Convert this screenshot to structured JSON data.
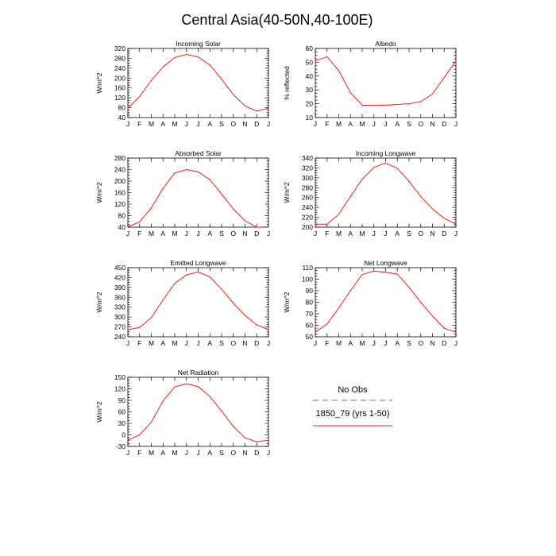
{
  "title": "Central Asia(40-50N,40-100E)",
  "months": [
    "J",
    "F",
    "M",
    "A",
    "M",
    "J",
    "J",
    "A",
    "S",
    "O",
    "N",
    "D",
    "J"
  ],
  "colors": {
    "model": "#e8201b",
    "obs": "#7f7fff",
    "axis": "#000000"
  },
  "legend": {
    "obs_label": "No Obs",
    "model_label": "1850_79 (yrs 1-50)"
  },
  "chart_data": [
    {
      "type": "line",
      "title": "Incoming Solar",
      "ylabel": "W/m^2",
      "ylim": [
        40,
        320
      ],
      "yticks": [
        40,
        80,
        120,
        160,
        200,
        240,
        280,
        320
      ],
      "series": [
        {
          "name": "1850_79 (yrs 1-50)",
          "values": [
            78,
            125,
            190,
            245,
            283,
            296,
            285,
            253,
            195,
            133,
            87,
            66,
            78
          ]
        }
      ]
    },
    {
      "type": "line",
      "title": "Albedo",
      "ylabel": "% reflected",
      "ylim": [
        10,
        60
      ],
      "yticks": [
        10,
        20,
        30,
        40,
        50,
        60
      ],
      "series": [
        {
          "name": "1850_79 (yrs 1-50)",
          "values": [
            51,
            54,
            44,
            28,
            19,
            18.8,
            19,
            19.5,
            20,
            21.5,
            27,
            39,
            51
          ]
        }
      ]
    },
    {
      "type": "line",
      "title": "Absorbed Solar",
      "ylabel": "W/m^2",
      "ylim": [
        40,
        280
      ],
      "yticks": [
        40,
        80,
        120,
        160,
        200,
        240,
        280
      ],
      "series": [
        {
          "name": "1850_79 (yrs 1-50)",
          "values": [
            41,
            58,
            107,
            175,
            228,
            240,
            232,
            205,
            155,
            103,
            62,
            40,
            41
          ]
        }
      ]
    },
    {
      "type": "line",
      "title": "Incoming Longwave",
      "ylabel": "W/m^2",
      "ylim": [
        200,
        340
      ],
      "yticks": [
        200,
        220,
        240,
        260,
        280,
        300,
        320,
        340
      ],
      "series": [
        {
          "name": "1850_79 (yrs 1-50)",
          "values": [
            206,
            206,
            226,
            262,
            297,
            321,
            330,
            319,
            293,
            262,
            237,
            218,
            206
          ]
        }
      ]
    },
    {
      "type": "line",
      "title": "Emitted Longwave",
      "ylabel": "W/m^2",
      "ylim": [
        240,
        450
      ],
      "yticks": [
        240,
        270,
        300,
        330,
        360,
        390,
        420,
        450
      ],
      "series": [
        {
          "name": "1850_79 (yrs 1-50)",
          "values": [
            262,
            268,
            298,
            352,
            402,
            428,
            437,
            422,
            385,
            342,
            305,
            276,
            262
          ]
        }
      ]
    },
    {
      "type": "line",
      "title": "Net Longwave",
      "ylabel": "W/m^2",
      "ylim": [
        50,
        110
      ],
      "yticks": [
        50,
        60,
        70,
        80,
        90,
        100,
        110
      ],
      "series": [
        {
          "name": "1850_79 (yrs 1-50)",
          "values": [
            54,
            61,
            75,
            90,
            104,
            107,
            106,
            104.5,
            93,
            80,
            68,
            57.5,
            54
          ]
        }
      ]
    },
    {
      "type": "line",
      "title": "Net Radiation",
      "ylabel": "W/m^2",
      "ylim": [
        -30,
        150
      ],
      "yticks": [
        -30,
        0,
        30,
        60,
        90,
        120,
        150
      ],
      "series": [
        {
          "name": "1850_79 (yrs 1-50)",
          "values": [
            -14,
            0,
            33,
            88,
            125,
            133,
            126,
            100,
            62,
            22,
            -8,
            -18,
            -14
          ]
        }
      ]
    }
  ]
}
